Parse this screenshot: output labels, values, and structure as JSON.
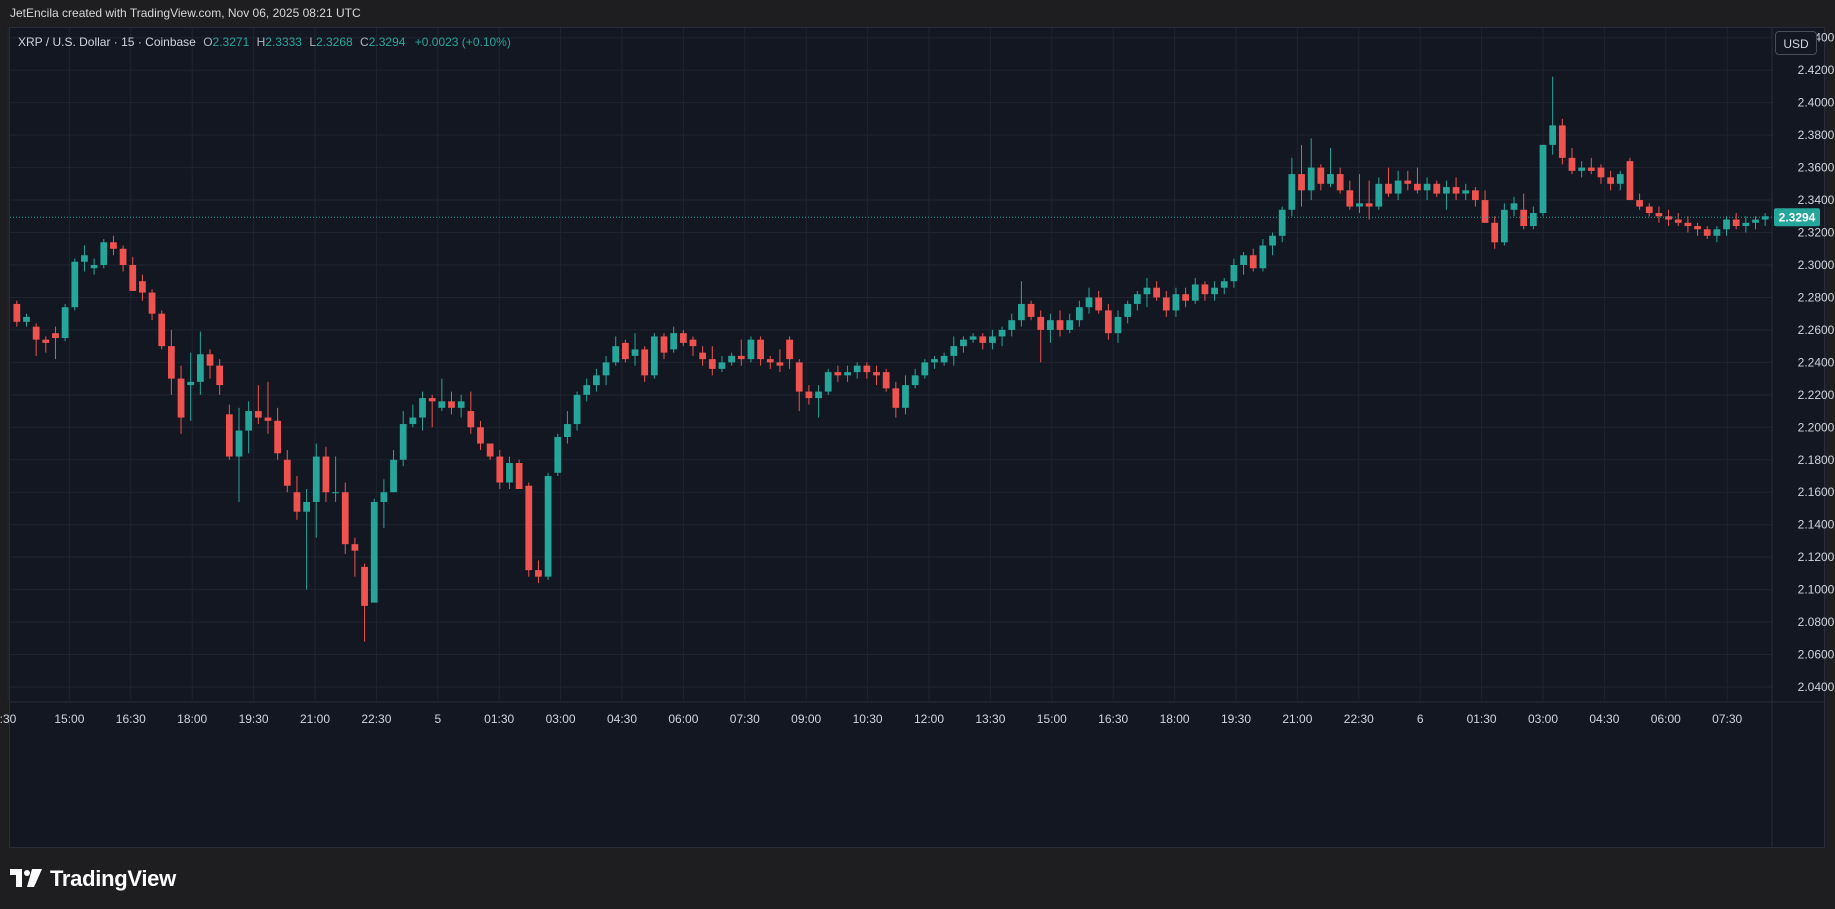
{
  "attribution": "JetEncila created with TradingView.com, Nov 06, 2025 08:21 UTC",
  "legend": {
    "symbol": "XRP / U.S. Dollar · 15 · Coinbase",
    "o_label": "O",
    "o_value": "2.3271",
    "h_label": "H",
    "h_value": "2.3333",
    "l_label": "L",
    "l_value": "2.3268",
    "c_label": "C",
    "c_value": "2.3294",
    "change": "+0.0023 (+0.10%)"
  },
  "currency_button": "USD",
  "brand": "TradingView",
  "chart_data": {
    "type": "candlestick",
    "symbol": "XRP / U.S. Dollar",
    "interval": "15",
    "exchange": "Coinbase",
    "currency": "USD",
    "up_color": "#26a69a",
    "down_color": "#ef5350",
    "background": "#131722",
    "last_price": 2.3294,
    "last_price_label": "2.3294",
    "ylim": [
      2.032,
      2.446
    ],
    "y_ticks": [
      "2.4400",
      "2.4200",
      "2.4000",
      "2.3800",
      "2.3600",
      "2.3400",
      "2.3200",
      "2.3000",
      "2.2800",
      "2.2600",
      "2.2400",
      "2.2200",
      "2.2000",
      "2.1800",
      "2.1600",
      "2.1400",
      "2.1200",
      "2.1000",
      "2.0800",
      "2.0600",
      "2.0400"
    ],
    "x_ticks": [
      ":30",
      "15:00",
      "16:30",
      "18:00",
      "19:30",
      "21:00",
      "22:30",
      "5",
      "01:30",
      "03:00",
      "04:30",
      "06:00",
      "07:30",
      "09:00",
      "10:30",
      "12:00",
      "13:30",
      "15:00",
      "16:30",
      "18:00",
      "19:30",
      "21:00",
      "22:30",
      "6",
      "01:30",
      "03:00",
      "04:30",
      "06:00",
      "07:30"
    ],
    "grid": true,
    "candles": [
      [
        2.276,
        2.278,
        2.262,
        2.265
      ],
      [
        2.265,
        2.27,
        2.262,
        2.268
      ],
      [
        2.262,
        2.264,
        2.244,
        2.254
      ],
      [
        2.254,
        2.256,
        2.246,
        2.252
      ],
      [
        2.258,
        2.262,
        2.242,
        2.255
      ],
      [
        2.255,
        2.276,
        2.253,
        2.274
      ],
      [
        2.274,
        2.304,
        2.272,
        2.302
      ],
      [
        2.302,
        2.312,
        2.296,
        2.306
      ],
      [
        2.298,
        2.304,
        2.294,
        2.3
      ],
      [
        2.3,
        2.316,
        2.298,
        2.314
      ],
      [
        2.314,
        2.318,
        2.306,
        2.31
      ],
      [
        2.31,
        2.312,
        2.296,
        2.3
      ],
      [
        2.3,
        2.305,
        2.284,
        2.284
      ],
      [
        2.29,
        2.294,
        2.278,
        2.283
      ],
      [
        2.283,
        2.285,
        2.266,
        2.27
      ],
      [
        2.27,
        2.272,
        2.248,
        2.25
      ],
      [
        2.25,
        2.26,
        2.22,
        2.23
      ],
      [
        2.23,
        2.238,
        2.196,
        2.206
      ],
      [
        2.226,
        2.246,
        2.204,
        2.228
      ],
      [
        2.228,
        2.259,
        2.22,
        2.245
      ],
      [
        2.245,
        2.248,
        2.23,
        2.238
      ],
      [
        2.238,
        2.242,
        2.22,
        2.226
      ],
      [
        2.208,
        2.214,
        2.18,
        2.182
      ],
      [
        2.182,
        2.212,
        2.154,
        2.198
      ],
      [
        2.198,
        2.216,
        2.184,
        2.21
      ],
      [
        2.21,
        2.226,
        2.202,
        2.206
      ],
      [
        2.206,
        2.228,
        2.196,
        2.204
      ],
      [
        2.204,
        2.212,
        2.18,
        2.184
      ],
      [
        2.18,
        2.186,
        2.16,
        2.164
      ],
      [
        2.16,
        2.17,
        2.143,
        2.148
      ],
      [
        2.148,
        2.162,
        2.1,
        2.154
      ],
      [
        2.154,
        2.19,
        2.132,
        2.182
      ],
      [
        2.182,
        2.188,
        2.154,
        2.16
      ],
      [
        2.16,
        2.182,
        2.154,
        2.16
      ],
      [
        2.16,
        2.166,
        2.122,
        2.128
      ],
      [
        2.128,
        2.132,
        2.108,
        2.124
      ],
      [
        2.114,
        2.116,
        2.068,
        2.09
      ],
      [
        2.092,
        2.156,
        2.092,
        2.154
      ],
      [
        2.154,
        2.168,
        2.138,
        2.16
      ],
      [
        2.16,
        2.186,
        2.16,
        2.18
      ],
      [
        2.18,
        2.21,
        2.176,
        2.202
      ],
      [
        2.202,
        2.214,
        2.2,
        2.206
      ],
      [
        2.206,
        2.222,
        2.198,
        2.218
      ],
      [
        2.218,
        2.22,
        2.2,
        2.216
      ],
      [
        2.212,
        2.23,
        2.21,
        2.216
      ],
      [
        2.216,
        2.222,
        2.208,
        2.212
      ],
      [
        2.212,
        2.22,
        2.206,
        2.216
      ],
      [
        2.21,
        2.222,
        2.196,
        2.2
      ],
      [
        2.2,
        2.204,
        2.186,
        2.19
      ],
      [
        2.19,
        2.186,
        2.18,
        2.182
      ],
      [
        2.182,
        2.186,
        2.162,
        2.166
      ],
      [
        2.166,
        2.182,
        2.162,
        2.178
      ],
      [
        2.178,
        2.18,
        2.162,
        2.162
      ],
      [
        2.164,
        2.166,
        2.108,
        2.112
      ],
      [
        2.112,
        2.118,
        2.104,
        2.108
      ],
      [
        2.108,
        2.172,
        2.106,
        2.17
      ],
      [
        2.172,
        2.196,
        2.17,
        2.194
      ],
      [
        2.194,
        2.21,
        2.19,
        2.202
      ],
      [
        2.202,
        2.222,
        2.198,
        2.22
      ],
      [
        2.22,
        2.23,
        2.216,
        2.226
      ],
      [
        2.226,
        2.236,
        2.222,
        2.232
      ],
      [
        2.232,
        2.244,
        2.226,
        2.24
      ],
      [
        2.24,
        2.256,
        2.238,
        2.25
      ],
      [
        2.252,
        2.254,
        2.24,
        2.242
      ],
      [
        2.244,
        2.258,
        2.238,
        2.248
      ],
      [
        2.248,
        2.25,
        2.228,
        2.232
      ],
      [
        2.232,
        2.258,
        2.23,
        2.256
      ],
      [
        2.256,
        2.258,
        2.242,
        2.246
      ],
      [
        2.248,
        2.262,
        2.246,
        2.258
      ],
      [
        2.258,
        2.26,
        2.25,
        2.252
      ],
      [
        2.254,
        2.256,
        2.244,
        2.25
      ],
      [
        2.246,
        2.25,
        2.238,
        2.242
      ],
      [
        2.242,
        2.25,
        2.232,
        2.236
      ],
      [
        2.236,
        2.244,
        2.234,
        2.24
      ],
      [
        2.24,
        2.246,
        2.238,
        2.244
      ],
      [
        2.244,
        2.254,
        2.238,
        2.242
      ],
      [
        2.242,
        2.256,
        2.24,
        2.254
      ],
      [
        2.254,
        2.256,
        2.238,
        2.242
      ],
      [
        2.242,
        2.244,
        2.236,
        2.24
      ],
      [
        2.24,
        2.248,
        2.234,
        2.238
      ],
      [
        2.254,
        2.256,
        2.236,
        2.242
      ],
      [
        2.24,
        2.242,
        2.21,
        2.222
      ],
      [
        2.222,
        2.226,
        2.214,
        2.218
      ],
      [
        2.218,
        2.226,
        2.206,
        2.222
      ],
      [
        2.222,
        2.236,
        2.22,
        2.234
      ],
      [
        2.234,
        2.238,
        2.228,
        2.232
      ],
      [
        2.232,
        2.238,
        2.228,
        2.234
      ],
      [
        2.234,
        2.24,
        2.23,
        2.238
      ],
      [
        2.238,
        2.24,
        2.23,
        2.234
      ],
      [
        2.234,
        2.238,
        2.226,
        2.232
      ],
      [
        2.234,
        2.236,
        2.222,
        2.224
      ],
      [
        2.224,
        2.228,
        2.206,
        2.212
      ],
      [
        2.212,
        2.232,
        2.208,
        2.226
      ],
      [
        2.226,
        2.236,
        2.224,
        2.232
      ],
      [
        2.232,
        2.242,
        2.23,
        2.24
      ],
      [
        2.24,
        2.244,
        2.236,
        2.242
      ],
      [
        2.24,
        2.246,
        2.238,
        2.244
      ],
      [
        2.244,
        2.256,
        2.238,
        2.25
      ],
      [
        2.25,
        2.256,
        2.246,
        2.254
      ],
      [
        2.254,
        2.258,
        2.252,
        2.256
      ],
      [
        2.256,
        2.258,
        2.248,
        2.252
      ],
      [
        2.252,
        2.26,
        2.248,
        2.256
      ],
      [
        2.256,
        2.262,
        2.25,
        2.26
      ],
      [
        2.26,
        2.27,
        2.256,
        2.266
      ],
      [
        2.266,
        2.29,
        2.262,
        2.276
      ],
      [
        2.276,
        2.278,
        2.266,
        2.268
      ],
      [
        2.268,
        2.272,
        2.24,
        2.26
      ],
      [
        2.26,
        2.27,
        2.252,
        2.266
      ],
      [
        2.266,
        2.272,
        2.256,
        2.26
      ],
      [
        2.26,
        2.27,
        2.258,
        2.266
      ],
      [
        2.266,
        2.278,
        2.262,
        2.274
      ],
      [
        2.274,
        2.286,
        2.27,
        2.28
      ],
      [
        2.28,
        2.284,
        2.27,
        2.272
      ],
      [
        2.272,
        2.276,
        2.254,
        2.258
      ],
      [
        2.258,
        2.272,
        2.252,
        2.268
      ],
      [
        2.268,
        2.278,
        2.264,
        2.276
      ],
      [
        2.276,
        2.284,
        2.272,
        2.282
      ],
      [
        2.282,
        2.292,
        2.274,
        2.286
      ],
      [
        2.286,
        2.29,
        2.278,
        2.28
      ],
      [
        2.28,
        2.284,
        2.268,
        2.272
      ],
      [
        2.272,
        2.286,
        2.268,
        2.282
      ],
      [
        2.282,
        2.286,
        2.274,
        2.278
      ],
      [
        2.278,
        2.292,
        2.276,
        2.288
      ],
      [
        2.288,
        2.29,
        2.278,
        2.282
      ],
      [
        2.282,
        2.29,
        2.278,
        2.286
      ],
      [
        2.286,
        2.292,
        2.282,
        2.29
      ],
      [
        2.29,
        2.304,
        2.286,
        2.3
      ],
      [
        2.3,
        2.308,
        2.294,
        2.306
      ],
      [
        2.306,
        2.31,
        2.296,
        2.298
      ],
      [
        2.298,
        2.316,
        2.296,
        2.312
      ],
      [
        2.312,
        2.32,
        2.306,
        2.318
      ],
      [
        2.318,
        2.336,
        2.314,
        2.334
      ],
      [
        2.334,
        2.366,
        2.33,
        2.356
      ],
      [
        2.356,
        2.374,
        2.336,
        2.346
      ],
      [
        2.346,
        2.378,
        2.34,
        2.36
      ],
      [
        2.36,
        2.362,
        2.346,
        2.35
      ],
      [
        2.35,
        2.372,
        2.348,
        2.356
      ],
      [
        2.356,
        2.36,
        2.344,
        2.346
      ],
      [
        2.346,
        2.352,
        2.334,
        2.336
      ],
      [
        2.336,
        2.356,
        2.332,
        2.338
      ],
      [
        2.338,
        2.352,
        2.328,
        2.336
      ],
      [
        2.336,
        2.354,
        2.334,
        2.35
      ],
      [
        2.35,
        2.36,
        2.342,
        2.344
      ],
      [
        2.344,
        2.358,
        2.34,
        2.352
      ],
      [
        2.352,
        2.358,
        2.346,
        2.35
      ],
      [
        2.35,
        2.36,
        2.344,
        2.346
      ],
      [
        2.346,
        2.354,
        2.34,
        2.35
      ],
      [
        2.35,
        2.352,
        2.342,
        2.344
      ],
      [
        2.344,
        2.352,
        2.334,
        2.348
      ],
      [
        2.348,
        2.354,
        2.34,
        2.344
      ],
      [
        2.344,
        2.35,
        2.34,
        2.346
      ],
      [
        2.346,
        2.348,
        2.336,
        2.34
      ],
      [
        2.34,
        2.346,
        2.326,
        2.326
      ],
      [
        2.326,
        2.33,
        2.31,
        2.314
      ],
      [
        2.314,
        2.338,
        2.312,
        2.334
      ],
      [
        2.334,
        2.342,
        2.33,
        2.338
      ],
      [
        2.334,
        2.344,
        2.322,
        2.324
      ],
      [
        2.324,
        2.336,
        2.322,
        2.332
      ],
      [
        2.332,
        2.374,
        2.33,
        2.374
      ],
      [
        2.374,
        2.416,
        2.368,
        2.386
      ],
      [
        2.386,
        2.39,
        2.362,
        2.366
      ],
      [
        2.366,
        2.372,
        2.356,
        2.358
      ],
      [
        2.358,
        2.364,
        2.354,
        2.36
      ],
      [
        2.36,
        2.366,
        2.356,
        2.358
      ],
      [
        2.36,
        2.362,
        2.35,
        2.354
      ],
      [
        2.354,
        2.358,
        2.346,
        2.35
      ],
      [
        2.35,
        2.358,
        2.346,
        2.356
      ],
      [
        2.364,
        2.366,
        2.34,
        2.34
      ],
      [
        2.34,
        2.344,
        2.334,
        2.336
      ],
      [
        2.336,
        2.338,
        2.33,
        2.332
      ],
      [
        2.332,
        2.336,
        2.326,
        2.33
      ],
      [
        2.33,
        2.334,
        2.324,
        2.328
      ],
      [
        2.328,
        2.332,
        2.324,
        2.326
      ],
      [
        2.326,
        2.33,
        2.32,
        2.324
      ],
      [
        2.324,
        2.326,
        2.318,
        2.322
      ],
      [
        2.322,
        2.324,
        2.316,
        2.318
      ],
      [
        2.318,
        2.324,
        2.314,
        2.322
      ],
      [
        2.322,
        2.33,
        2.318,
        2.328
      ],
      [
        2.328,
        2.332,
        2.322,
        2.324
      ],
      [
        2.324,
        2.33,
        2.32,
        2.326
      ],
      [
        2.326,
        2.33,
        2.322,
        2.328
      ],
      [
        2.328,
        2.332,
        2.324,
        2.33
      ]
    ]
  }
}
